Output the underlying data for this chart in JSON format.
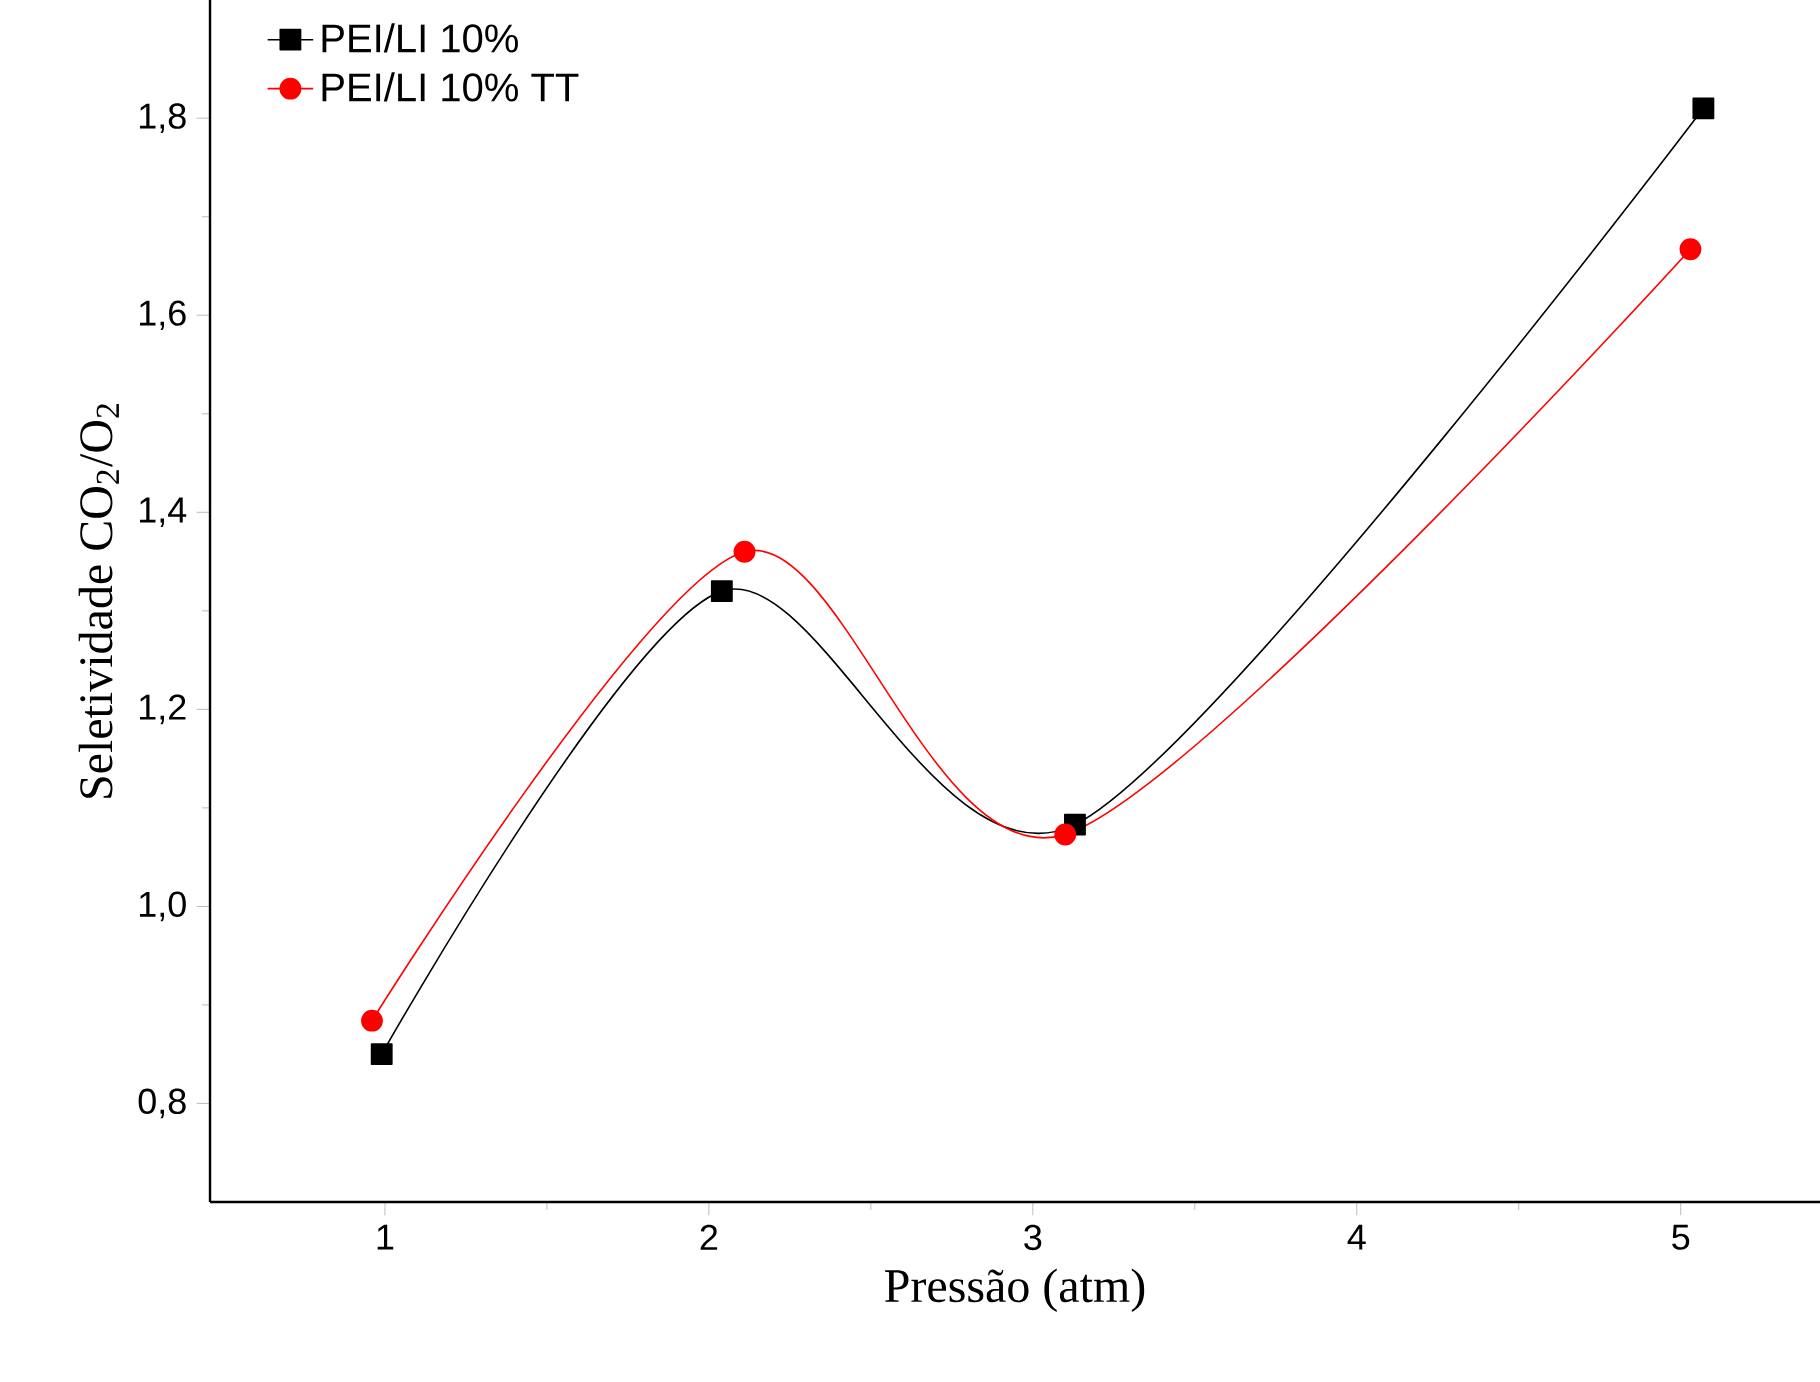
{
  "chart_data": {
    "type": "line",
    "xlabel": "Pressão (atm)",
    "ylabel": "Seletividade CO$_{2}$/O$_{2}$",
    "xlim": [
      0.46,
      5.43
    ],
    "ylim": [
      0.7,
      1.92
    ],
    "xticks": [
      1,
      2,
      3,
      4,
      5
    ],
    "yticks": [
      {
        "value": 0.8,
        "label": "0,8"
      },
      {
        "value": 1.0,
        "label": "1,0"
      },
      {
        "value": 1.2,
        "label": "1,2"
      },
      {
        "value": 1.4,
        "label": "1,4"
      },
      {
        "value": 1.6,
        "label": "1,6"
      },
      {
        "value": 1.8,
        "label": "1,8"
      }
    ],
    "legend": "top left",
    "series": [
      {
        "name": "PEI/LI 10%",
        "color": "#000000",
        "marker": "square",
        "x": [
          0.99,
          2.04,
          3.13,
          5.07
        ],
        "values": [
          0.85,
          1.32,
          1.083,
          1.81
        ]
      },
      {
        "name": "PEI/LI 10% TT",
        "color": "#ff0000",
        "marker": "circle",
        "x": [
          0.96,
          2.11,
          3.1,
          5.03
        ],
        "values": [
          0.884,
          1.36,
          1.073,
          1.667
        ]
      }
    ]
  }
}
